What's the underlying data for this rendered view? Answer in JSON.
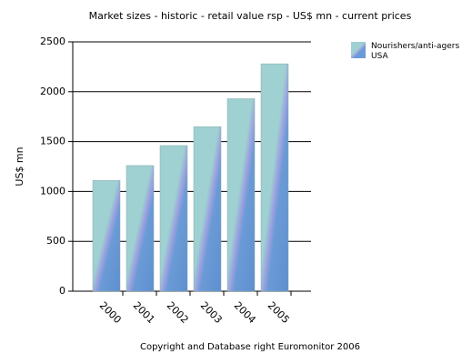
{
  "chart_data": {
    "type": "bar",
    "title": "Market sizes - historic - retail value rsp - US$ mn - current prices",
    "y_label": "US$ mn",
    "categories": [
      "2000",
      "2001",
      "2002",
      "2003",
      "2004",
      "2005"
    ],
    "series": [
      {
        "name": "Nourishers/anti-agers USA",
        "color": "#6b9bd6",
        "values": [
          1110,
          1260,
          1460,
          1650,
          1930,
          2280
        ]
      }
    ],
    "ylim": [
      0,
      2500
    ],
    "yticks": [
      0,
      500,
      1000,
      1500,
      2000,
      2500
    ],
    "grid": true,
    "legend": "top-right",
    "footer": "Copyright and Database right Euromonitor 2006"
  }
}
